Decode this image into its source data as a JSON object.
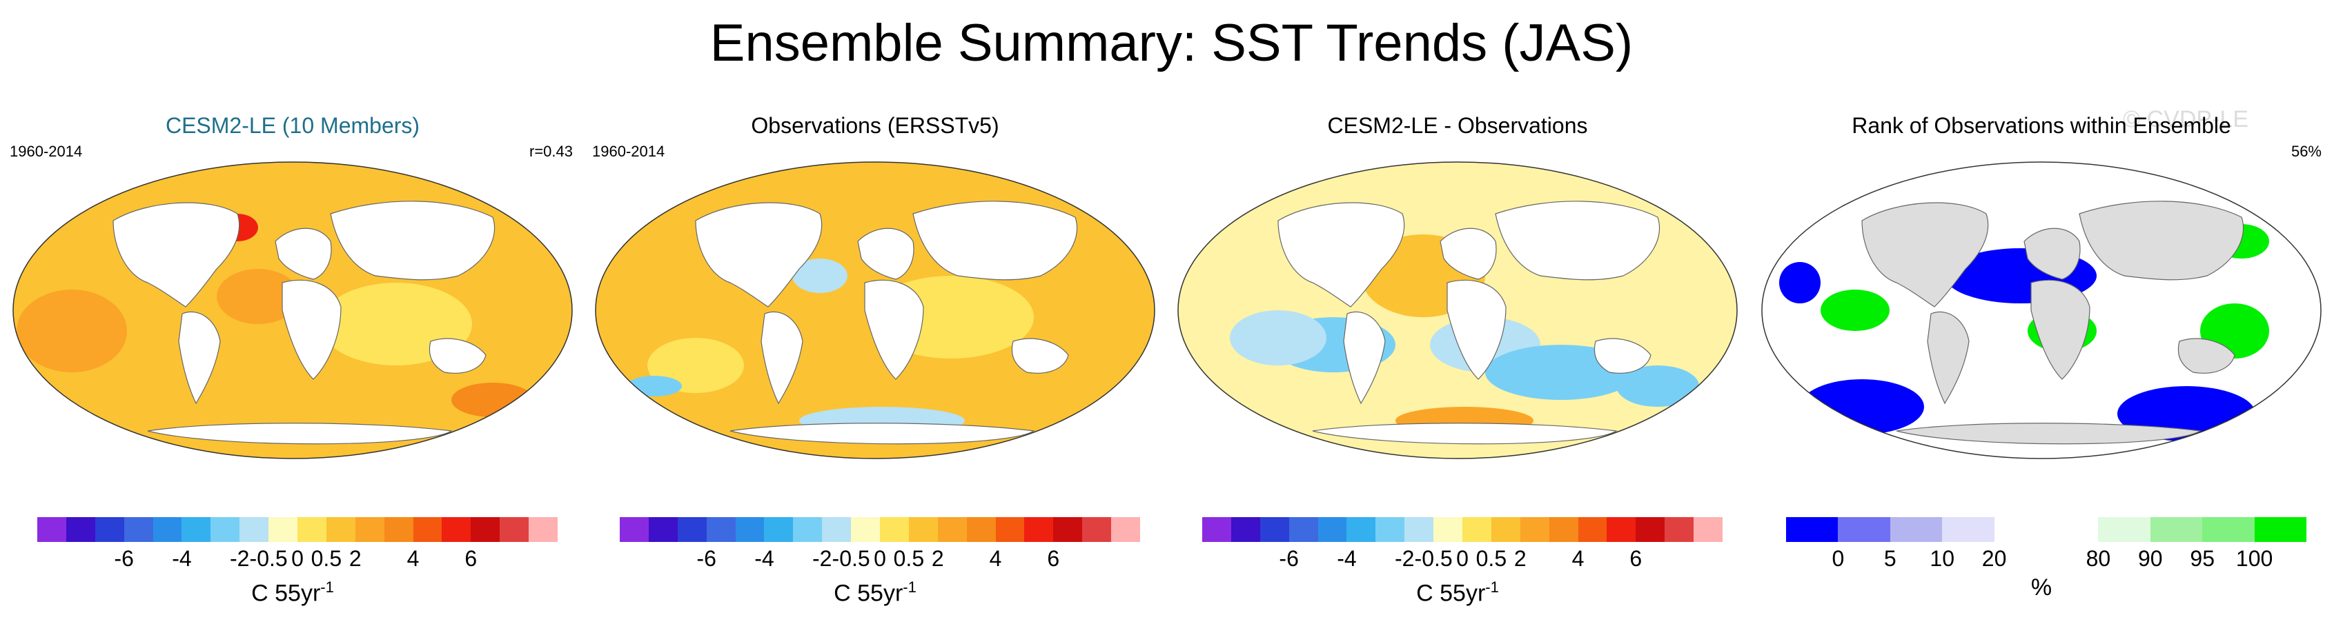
{
  "title": "Ensemble Summary: SST Trends (JAS)",
  "watermark": "© CVDP-LE",
  "chart_data": [
    {
      "type": "heatmap",
      "title": "CESM2-LE (10 Members)",
      "period": "1960-2014",
      "stat": "r=0.43",
      "units_base": "C 55yr",
      "units_exp": "-1",
      "colors": [
        "#8a2be2",
        "#3d10c9",
        "#2a3fd6",
        "#3d6ae0",
        "#2a8ee8",
        "#34b0ef",
        "#78cff5",
        "#b7e1f5",
        "#fdfbbd",
        "#fde45a",
        "#fbc233",
        "#faa527",
        "#f68a1a",
        "#f4590f",
        "#ef2010",
        "#cc0d0d",
        "#e04040",
        "#ffb0b0"
      ],
      "tick_labels": [
        "-6",
        "-4",
        "-2",
        "-0.5",
        "0",
        "0.5",
        "2",
        "4",
        "6"
      ],
      "ocean_color": "#fbc233",
      "land_color": "#ffffff"
    },
    {
      "type": "heatmap",
      "title": "Observations (ERSSTv5)",
      "period": "1960-2014",
      "stat": "",
      "units_base": "C 55yr",
      "units_exp": "-1",
      "colors": [
        "#8a2be2",
        "#3d10c9",
        "#2a3fd6",
        "#3d6ae0",
        "#2a8ee8",
        "#34b0ef",
        "#78cff5",
        "#b7e1f5",
        "#fdfbbd",
        "#fde45a",
        "#fbc233",
        "#faa527",
        "#f68a1a",
        "#f4590f",
        "#ef2010",
        "#cc0d0d",
        "#e04040",
        "#ffb0b0"
      ],
      "tick_labels": [
        "-6",
        "-4",
        "-2",
        "-0.5",
        "0",
        "0.5",
        "2",
        "4",
        "6"
      ],
      "ocean_color": "#fbc233",
      "land_color": "#ffffff"
    },
    {
      "type": "heatmap",
      "title": "CESM2-LE - Observations",
      "period": "",
      "stat": "",
      "units_base": "C 55yr",
      "units_exp": "-1",
      "colors": [
        "#8a2be2",
        "#3d10c9",
        "#2a3fd6",
        "#3d6ae0",
        "#2a8ee8",
        "#34b0ef",
        "#78cff5",
        "#b7e1f5",
        "#fdfbbd",
        "#fde45a",
        "#fbc233",
        "#faa527",
        "#f68a1a",
        "#f4590f",
        "#ef2010",
        "#cc0d0d",
        "#e04040",
        "#ffb0b0"
      ],
      "tick_labels": [
        "-6",
        "-4",
        "-2",
        "-0.5",
        "0",
        "0.5",
        "2",
        "4",
        "6"
      ],
      "ocean_color": "#fef3a6",
      "land_color": "#ffffff"
    },
    {
      "type": "heatmap",
      "title": "Rank of Observations within Ensemble",
      "period": "",
      "stat": "56%",
      "units_base": "%",
      "units_exp": "",
      "colors": [
        "#0000ff",
        "#7070f5",
        "#b4b4f0",
        "#e0e0fa",
        "#ffffff",
        "#ffffff",
        "#e0fae0",
        "#a0f0a0",
        "#80f080",
        "#00ee00"
      ],
      "tick_labels": [
        "0",
        "5",
        "10",
        "20",
        "80",
        "90",
        "95",
        "100"
      ],
      "ocean_color": "#ffffff",
      "land_color": "#dddddd"
    }
  ]
}
